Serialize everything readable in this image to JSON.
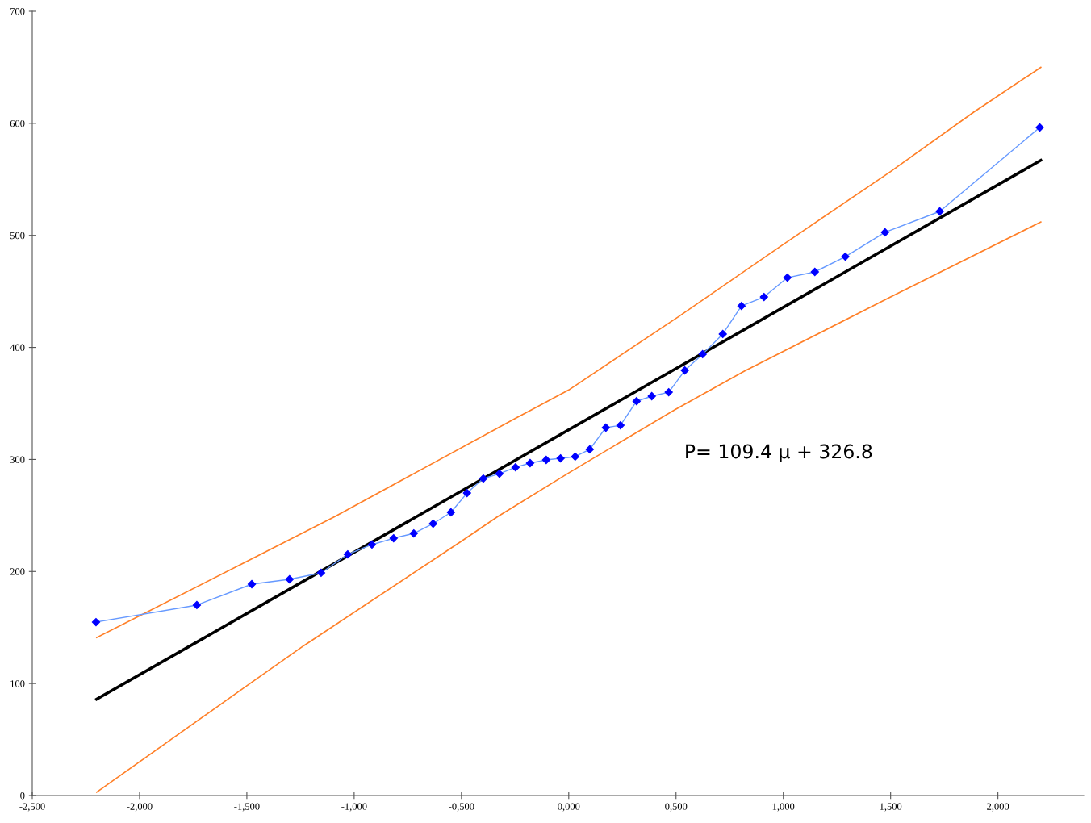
{
  "chart_data": {
    "type": "line",
    "xlim": [
      -2.5,
      2.4
    ],
    "ylim": [
      0,
      700
    ],
    "xticks": [
      {
        "value": -2.5,
        "label": "-2,500"
      },
      {
        "value": -2,
        "label": "-2,000"
      },
      {
        "value": -1.5,
        "label": "-1,500"
      },
      {
        "value": -1,
        "label": "-1,000"
      },
      {
        "value": -0.5,
        "label": "-0,500"
      },
      {
        "value": 0,
        "label": "0,000"
      },
      {
        "value": 0.5,
        "label": "0,500"
      },
      {
        "value": 1,
        "label": "1,000"
      },
      {
        "value": 1.5,
        "label": "1,500"
      },
      {
        "value": 2,
        "label": "2,000"
      }
    ],
    "yticks": [
      0,
      100,
      200,
      300,
      400,
      500,
      600,
      700
    ],
    "grid": false,
    "legend": false,
    "annotations": [
      "P= 109.4 μ + 326.8"
    ],
    "series": [
      {
        "color": "#ff7f27",
        "marker": "none",
        "x": [
          -2.2,
          -1.5,
          -1.09,
          -0.245,
          0,
          0.508,
          1.0,
          1.5,
          1.887,
          2.2
        ],
        "values": [
          141,
          209,
          249,
          337,
          362,
          427,
          492,
          557,
          610,
          650
        ]
      },
      {
        "color": "#ff7f27",
        "marker": "none",
        "x": [
          -2.2,
          -1.5,
          -1.233,
          -0.5,
          -0.331,
          0,
          0.5,
          0.82,
          1.5,
          2.2
        ],
        "values": [
          3,
          98,
          134,
          227,
          249,
          288,
          345,
          379,
          445,
          512
        ]
      },
      {
        "color": "#000000",
        "marker": "none",
        "x": [
          -2.2,
          2.2
        ],
        "values": [
          86,
          567
        ]
      },
      {
        "color": "#0000ff",
        "marker": "diamond",
        "x": [
          -2.203,
          -1.733,
          -1.477,
          -1.301,
          -1.154,
          -1.03,
          -0.917,
          -0.816,
          -0.722,
          -0.632,
          -0.549,
          -0.474,
          -0.398,
          -0.323,
          -0.248,
          -0.18,
          -0.105,
          -0.038,
          0.03,
          0.098,
          0.173,
          0.241,
          0.316,
          0.387,
          0.466,
          0.541,
          0.624,
          0.718,
          0.805,
          0.91,
          1.019,
          1.147,
          1.289,
          1.474,
          1.729,
          2.195
        ],
        "values": [
          154.8,
          170,
          188.7,
          193,
          198.8,
          215.3,
          224,
          229.7,
          234,
          242.7,
          252.8,
          270,
          283,
          287.3,
          293,
          296.7,
          299.6,
          301,
          302.5,
          309,
          328.4,
          330.5,
          352,
          356.5,
          360,
          379.5,
          394,
          412,
          437,
          445,
          462.3,
          467.4,
          481,
          502.7,
          521.4,
          596.3
        ]
      }
    ]
  }
}
